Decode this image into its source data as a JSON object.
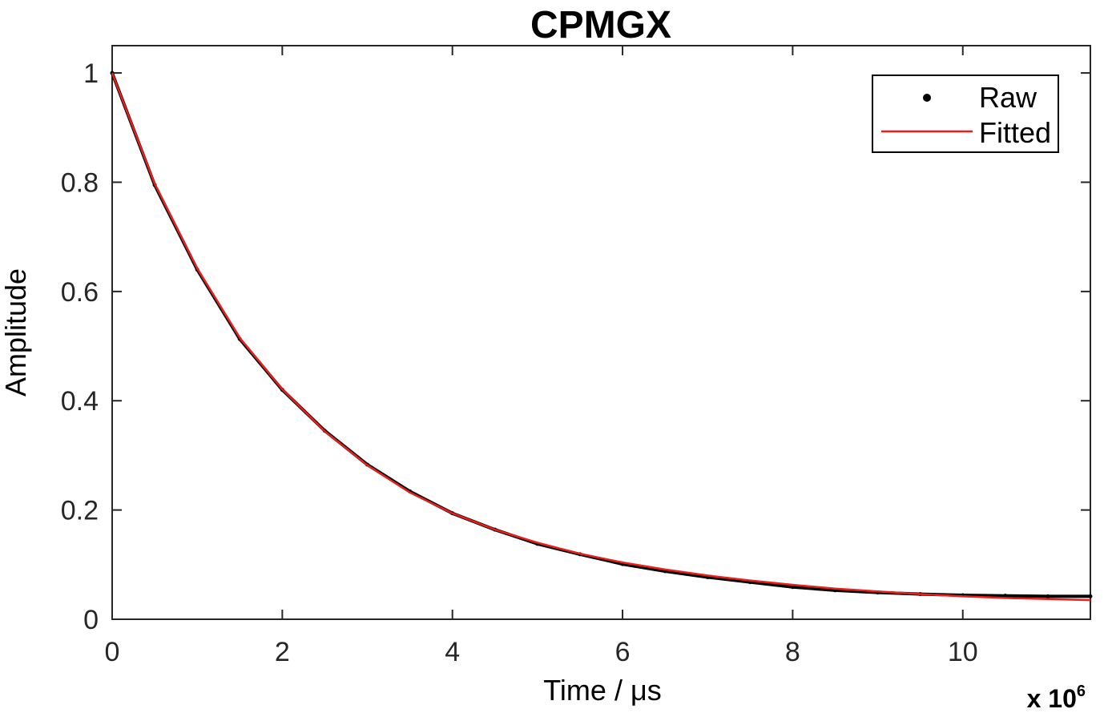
{
  "chart_data": {
    "type": "line",
    "title": "CPMGX",
    "xlabel": "Time / μs",
    "ylabel": "Amplitude",
    "x_multiplier": "x 10",
    "x_multiplier_exp": "6",
    "xlim": [
      0,
      11.5
    ],
    "ylim": [
      0,
      1.05
    ],
    "xticks": [
      0,
      2,
      4,
      6,
      8,
      10
    ],
    "xtick_labels": [
      "0",
      "2",
      "4",
      "6",
      "8",
      "10"
    ],
    "yticks": [
      0,
      0.2,
      0.4,
      0.6,
      0.8,
      1
    ],
    "ytick_labels": [
      "0",
      "0.2",
      "0.4",
      "0.6",
      "0.8",
      "1"
    ],
    "grid": false,
    "legend_position": "top-right",
    "series": [
      {
        "name": "Raw",
        "style": "dots",
        "color": "#000000",
        "x": [
          0,
          0.5,
          1,
          1.5,
          2,
          2.5,
          3,
          3.5,
          4,
          4.5,
          5,
          5.5,
          6,
          6.5,
          7,
          7.5,
          8,
          8.5,
          9,
          9.5,
          10,
          10.5,
          11,
          11.5
        ],
        "y": [
          1.0,
          0.795,
          0.64,
          0.513,
          0.42,
          0.345,
          0.283,
          0.234,
          0.194,
          0.164,
          0.138,
          0.119,
          0.101,
          0.088,
          0.077,
          0.068,
          0.059,
          0.053,
          0.049,
          0.046,
          0.044,
          0.043,
          0.042,
          0.042
        ]
      },
      {
        "name": "Fitted",
        "style": "line",
        "color": "#e8201c",
        "x": [
          0,
          0.5,
          1,
          1.5,
          2,
          2.5,
          3,
          3.5,
          4,
          4.5,
          5,
          5.5,
          6,
          6.5,
          7,
          7.5,
          8,
          8.5,
          9,
          9.5,
          10,
          10.5,
          11,
          11.5
        ],
        "y": [
          1.0,
          0.797,
          0.642,
          0.515,
          0.421,
          0.344,
          0.282,
          0.232,
          0.194,
          0.164,
          0.14,
          0.12,
          0.104,
          0.091,
          0.08,
          0.071,
          0.063,
          0.056,
          0.051,
          0.046,
          0.042,
          0.039,
          0.037,
          0.035
        ]
      }
    ]
  }
}
